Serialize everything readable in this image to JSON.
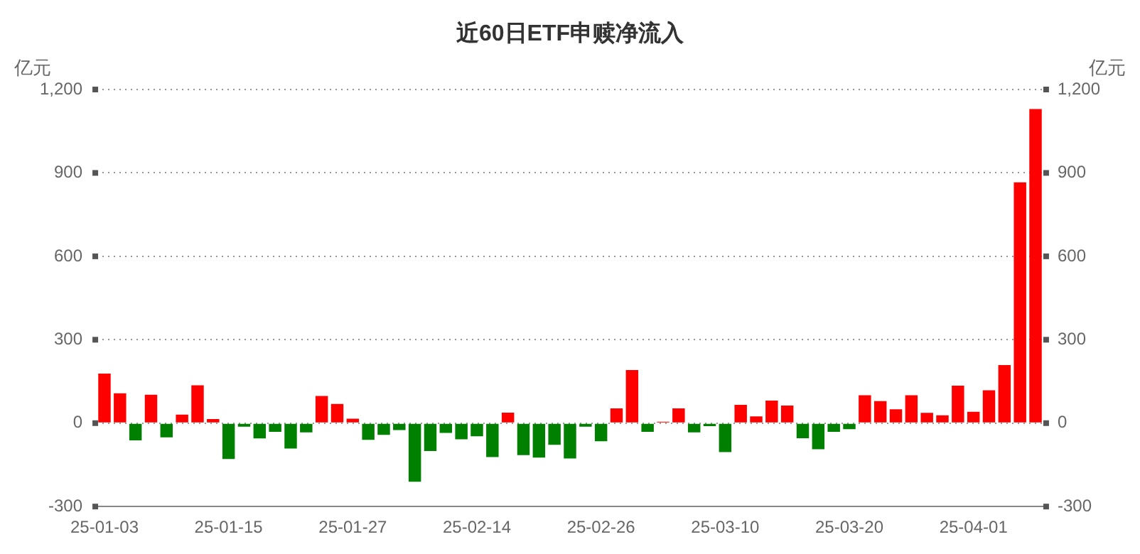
{
  "chart_data": {
    "type": "bar",
    "title": "近60日ETF申赎净流入",
    "ylabel": "亿元",
    "y2label": "亿元",
    "categories": [
      "25-01-03",
      null,
      null,
      null,
      null,
      null,
      null,
      null,
      "25-01-15",
      null,
      null,
      null,
      null,
      null,
      null,
      null,
      "25-01-27",
      null,
      null,
      null,
      null,
      null,
      null,
      null,
      "25-02-14",
      null,
      null,
      null,
      null,
      null,
      null,
      null,
      "25-02-26",
      null,
      null,
      null,
      null,
      null,
      null,
      null,
      "25-03-10",
      null,
      null,
      null,
      null,
      null,
      null,
      null,
      "25-03-20",
      null,
      null,
      null,
      null,
      null,
      null,
      null,
      "25-04-01",
      null,
      null,
      null,
      null
    ],
    "values": [
      178,
      107,
      -62,
      102,
      -51,
      31,
      136,
      15,
      -129,
      -13,
      -55,
      -31,
      -91,
      -33,
      98,
      69,
      16,
      -60,
      -42,
      -25,
      -211,
      -100,
      -35,
      -58,
      -47,
      -122,
      38,
      -115,
      -124,
      -78,
      -127,
      -13,
      -65,
      53,
      191,
      -31,
      5,
      53,
      -33,
      -11,
      -104,
      66,
      24,
      81,
      63,
      -54,
      -94,
      -31,
      -22,
      100,
      79,
      50,
      100,
      37,
      28,
      135,
      41,
      118,
      209,
      866,
      1130
    ],
    "colors": [
      "#ff0000",
      "#ff0000",
      "#008000",
      "#ff0000",
      "#008000",
      "#ff0000",
      "#ff0000",
      "#ff0000",
      "#008000",
      "#008000",
      "#008000",
      "#008000",
      "#008000",
      "#008000",
      "#ff0000",
      "#ff0000",
      "#ff0000",
      "#008000",
      "#008000",
      "#008000",
      "#008000",
      "#008000",
      "#008000",
      "#008000",
      "#008000",
      "#008000",
      "#ff0000",
      "#008000",
      "#008000",
      "#008000",
      "#008000",
      "#008000",
      "#008000",
      "#ff0000",
      "#ff0000",
      "#008000",
      "#ff0000",
      "#ff0000",
      "#008000",
      "#008000",
      "#008000",
      "#ff0000",
      "#ff0000",
      "#ff0000",
      "#ff0000",
      "#008000",
      "#008000",
      "#008000",
      "#008000",
      "#ff0000",
      "#ff0000",
      "#ff0000",
      "#ff0000",
      "#ff0000",
      "#ff0000",
      "#ff0000",
      "#ff0000",
      "#ff0000",
      "#ff0000",
      "#ff0000",
      "#ff0000"
    ],
    "ylim": [
      -300,
      1200
    ],
    "yticks": [
      {
        "value": -300,
        "label": "-300"
      },
      {
        "value": 0,
        "label": "0"
      },
      {
        "value": 300,
        "label": "300"
      },
      {
        "value": 600,
        "label": "600"
      },
      {
        "value": 900,
        "label": "900"
      },
      {
        "value": 1200,
        "label": "1,200"
      }
    ],
    "y2lim": [
      -300,
      1200
    ],
    "y2ticks": [
      {
        "value": -300,
        "label": "-300"
      },
      {
        "value": 0,
        "label": "0"
      },
      {
        "value": 300,
        "label": "300"
      },
      {
        "value": 600,
        "label": "600"
      },
      {
        "value": 900,
        "label": "900"
      },
      {
        "value": 1200,
        "label": "1,200"
      }
    ],
    "grid": "y",
    "legend": false
  }
}
